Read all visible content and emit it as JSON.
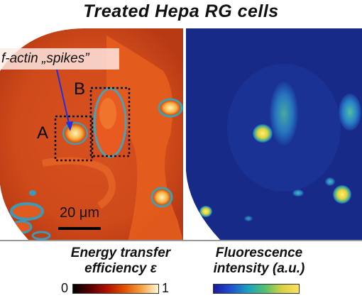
{
  "title": "Treated Hepa RG cells",
  "left_panel": {
    "annotation": "f-actin „spikes”",
    "region_labels": [
      "A",
      "B"
    ],
    "scale_bar_label": "20 μm"
  },
  "colorbars": {
    "fret": {
      "label_line1": "Energy transfer",
      "label_line2": "efficiency ε",
      "min_label": "0",
      "max_label": "1",
      "colormap": [
        "#000000",
        "#5a0000",
        "#b01000",
        "#e05000",
        "#f5a040",
        "#fff8d8"
      ]
    },
    "fluorescence": {
      "label_line1": "Fluorescence",
      "label_line2": "intensity (a.u.)",
      "colormap": [
        "#1a1aa0",
        "#2050d0",
        "#1aa0c0",
        "#50c070",
        "#d8d040",
        "#ffe060"
      ]
    }
  },
  "colors": {
    "fret_background": "#d24a1c",
    "fluo_background": "#182a8a",
    "arrow": "#2030e0"
  }
}
